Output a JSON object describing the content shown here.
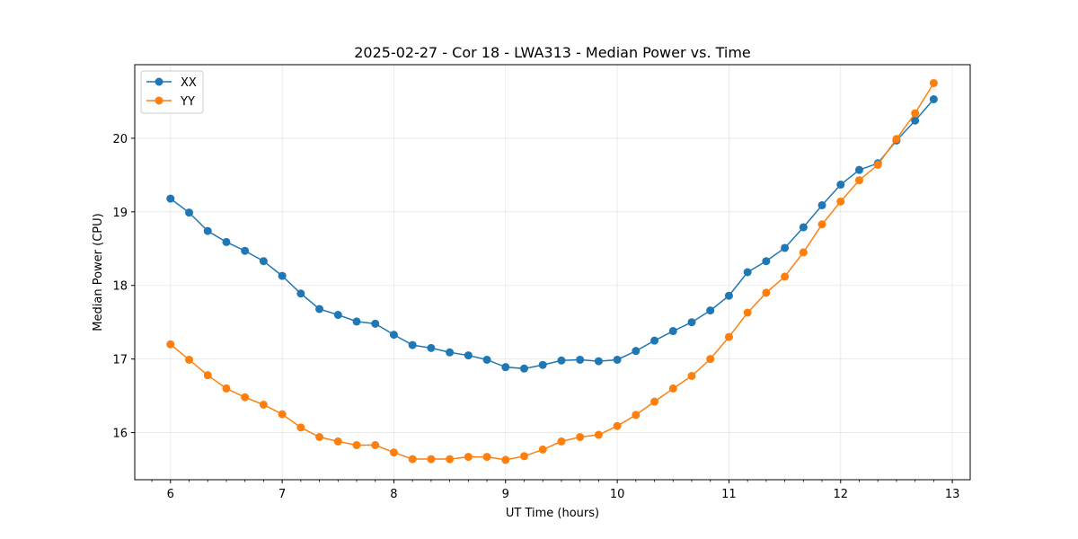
{
  "chart_data": {
    "type": "line",
    "title": "2025-02-27 - Cor 18 - LWA313 - Median Power vs. Time",
    "xlabel": "UT Time (hours)",
    "ylabel": "Median Power (CPU)",
    "xlim": [
      5.68,
      13.16
    ],
    "ylim": [
      15.36,
      21.0
    ],
    "xticks": [
      6,
      7,
      8,
      9,
      10,
      11,
      12,
      13
    ],
    "yticks": [
      16,
      17,
      18,
      19,
      20
    ],
    "grid": true,
    "legend_position": "top-left",
    "x": [
      6.0,
      6.1667,
      6.3333,
      6.5,
      6.6667,
      6.8333,
      7.0,
      7.1667,
      7.3333,
      7.5,
      7.6667,
      7.8333,
      8.0,
      8.1667,
      8.3333,
      8.5,
      8.6667,
      8.8333,
      9.0,
      9.1667,
      9.3333,
      9.5,
      9.6667,
      9.8333,
      10.0,
      10.1667,
      10.3333,
      10.5,
      10.6667,
      10.8333,
      11.0,
      11.1667,
      11.3333,
      11.5,
      11.6667,
      11.8333,
      12.0,
      12.1667,
      12.3333,
      12.5,
      12.6667,
      12.8333
    ],
    "series": [
      {
        "name": "XX",
        "color": "#1f77b4",
        "values": [
          19.18,
          18.99,
          18.74,
          18.59,
          18.47,
          18.33,
          18.13,
          17.89,
          17.68,
          17.6,
          17.51,
          17.48,
          17.33,
          17.19,
          17.15,
          17.09,
          17.05,
          16.99,
          16.89,
          16.87,
          16.92,
          16.98,
          16.99,
          16.97,
          16.99,
          17.11,
          17.25,
          17.38,
          17.5,
          17.66,
          17.86,
          18.18,
          18.33,
          18.51,
          18.79,
          19.09,
          19.37,
          19.57,
          19.66,
          19.97,
          20.24,
          20.53
        ]
      },
      {
        "name": "YY",
        "color": "#ff7f0e",
        "values": [
          17.2,
          16.99,
          16.78,
          16.6,
          16.48,
          16.38,
          16.25,
          16.07,
          15.94,
          15.88,
          15.83,
          15.83,
          15.73,
          15.64,
          15.64,
          15.64,
          15.67,
          15.67,
          15.63,
          15.68,
          15.77,
          15.88,
          15.94,
          15.97,
          16.09,
          16.24,
          16.42,
          16.6,
          16.77,
          17.0,
          17.3,
          17.63,
          17.9,
          18.12,
          18.45,
          18.83,
          19.14,
          19.43,
          19.64,
          19.99,
          20.34,
          20.75
        ]
      }
    ]
  }
}
